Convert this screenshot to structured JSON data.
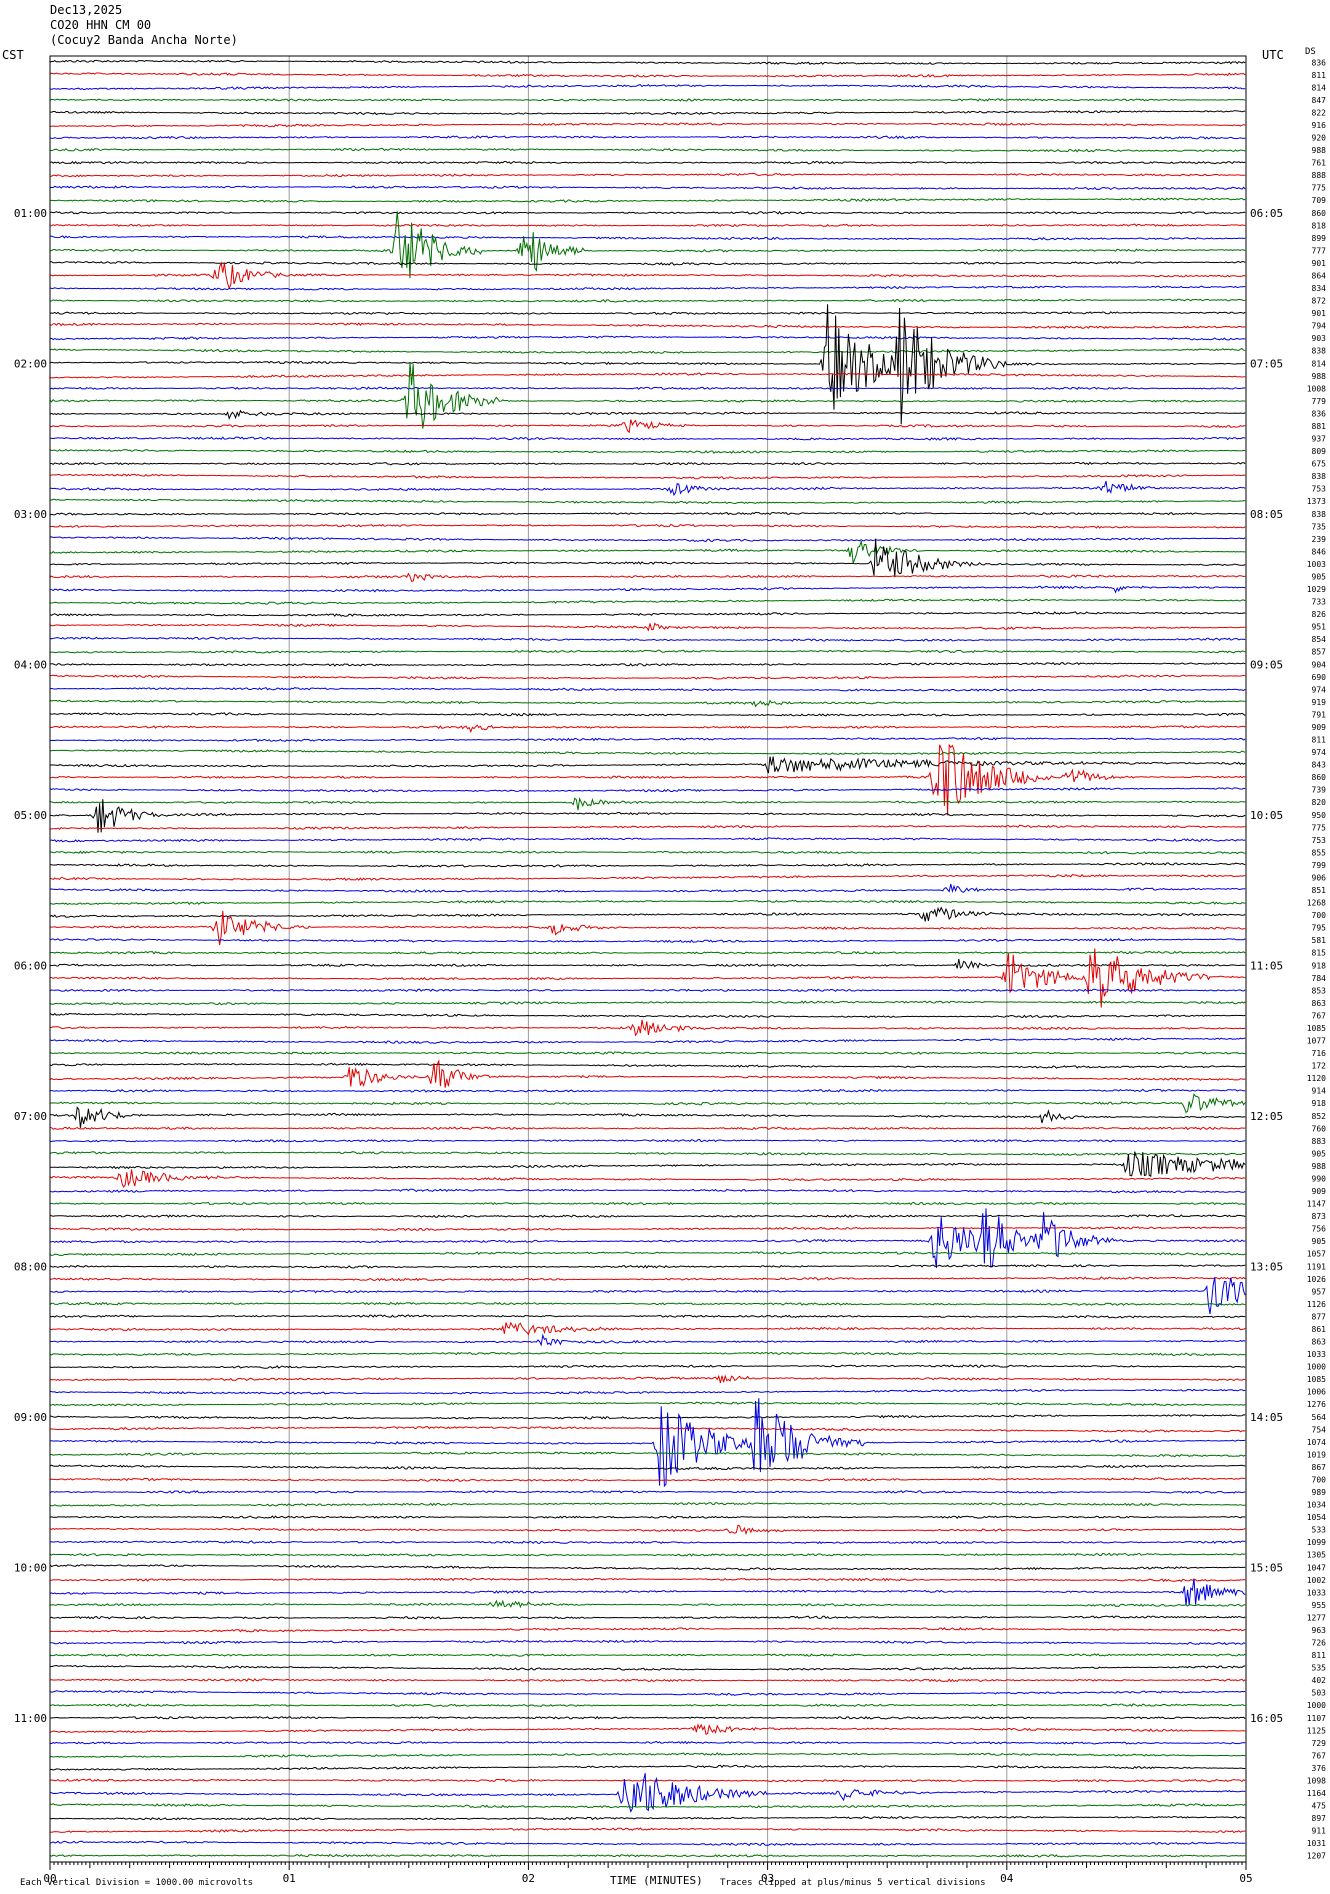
{
  "header": {
    "date": "Dec13,2025",
    "station": "CO20 HHN CM 00",
    "location": "(Cocuy2 Banda Ancha Norte)"
  },
  "left_axis_label": "CST",
  "right_axis_label": "UTC",
  "ds_label": "DS",
  "footer": {
    "scale_note": "Each Vertical Division = 1000.00 microvolts",
    "xlabel": "TIME (MINUTES)",
    "clip_note": "Traces clipped at plus/minus 5 vertical divisions"
  },
  "chart_data": {
    "type": "line",
    "trace_count": 144,
    "minutes_per_trace": 5,
    "xlim": [
      0,
      5
    ],
    "x_ticks": [
      "00",
      "01",
      "02",
      "03",
      "04",
      "05"
    ],
    "trace_colors": [
      "#000000",
      "#e00000",
      "#0000e0",
      "#007000"
    ],
    "left_time_labels": [
      "01:00",
      "02:00",
      "03:00",
      "04:00",
      "05:00",
      "06:00",
      "07:00",
      "08:00",
      "09:00",
      "10:00",
      "11:00"
    ],
    "right_time_labels": [
      "06:05",
      "07:05",
      "08:05",
      "09:05",
      "10:05",
      "11:05",
      "12:05",
      "13:05",
      "14:05",
      "15:05",
      "16:05"
    ],
    "ds_values": [
      836,
      811,
      814,
      847,
      822,
      916,
      920,
      988,
      761,
      888,
      775,
      709,
      860,
      818,
      899,
      777,
      901,
      864,
      834,
      872,
      901,
      794,
      903,
      838,
      814,
      988,
      1008,
      779,
      836,
      881,
      937,
      809,
      675,
      838,
      753,
      1373,
      838,
      735,
      239,
      846,
      1003,
      905,
      1029,
      733,
      826,
      951,
      854,
      857,
      904,
      690,
      974,
      919,
      791,
      909,
      811,
      974,
      843,
      860,
      739,
      820,
      950,
      775,
      753,
      855,
      799,
      906,
      851,
      1268,
      700,
      795,
      581,
      815,
      918,
      784,
      853,
      863,
      767,
      1085,
      1077,
      716,
      172,
      1120,
      914,
      918,
      852,
      760,
      883,
      905,
      988,
      990,
      909,
      1147,
      873,
      756,
      905,
      1057,
      1191,
      1026,
      957,
      1126,
      877,
      861,
      863,
      1033,
      1000,
      1085,
      1006,
      1276,
      564,
      754,
      1074,
      1019,
      867,
      700,
      989,
      1034,
      1054,
      533,
      1099,
      1305,
      1047,
      1002,
      1033,
      955,
      1277,
      963,
      726,
      811,
      535,
      402,
      503,
      1000,
      1107,
      1125,
      729,
      767,
      376,
      1098,
      1164,
      475,
      897,
      911,
      1031,
      1207
    ],
    "events": [
      {
        "trace": 15,
        "minute": 1.45,
        "amplitude": 4.2,
        "duration": 0.35
      },
      {
        "trace": 15,
        "minute": 1.98,
        "amplitude": 3.0,
        "duration": 0.25
      },
      {
        "trace": 17,
        "minute": 0.7,
        "amplitude": 1.6,
        "duration": 0.3
      },
      {
        "trace": 24,
        "minute": 3.25,
        "amplitude": 5.0,
        "duration": 0.45
      },
      {
        "trace": 24,
        "minute": 3.55,
        "amplitude": 5.0,
        "duration": 0.45
      },
      {
        "trace": 27,
        "minute": 1.5,
        "amplitude": 3.5,
        "duration": 0.4
      },
      {
        "trace": 28,
        "minute": 0.75,
        "amplitude": 0.5,
        "duration": 0.3
      },
      {
        "trace": 29,
        "minute": 2.4,
        "amplitude": 0.6,
        "duration": 0.3
      },
      {
        "trace": 34,
        "minute": 2.6,
        "amplitude": 0.6,
        "duration": 0.3
      },
      {
        "trace": 34,
        "minute": 4.4,
        "amplitude": 0.8,
        "duration": 0.25
      },
      {
        "trace": 39,
        "minute": 3.35,
        "amplitude": 1.2,
        "duration": 0.3
      },
      {
        "trace": 40,
        "minute": 3.45,
        "amplitude": 2.2,
        "duration": 0.45
      },
      {
        "trace": 41,
        "minute": 1.5,
        "amplitude": 0.4,
        "duration": 0.3
      },
      {
        "trace": 42,
        "minute": 4.45,
        "amplitude": 0.4,
        "duration": 0.2
      },
      {
        "trace": 45,
        "minute": 2.5,
        "amplitude": 0.4,
        "duration": 0.2
      },
      {
        "trace": 51,
        "minute": 2.95,
        "amplitude": 0.4,
        "duration": 0.2
      },
      {
        "trace": 53,
        "minute": 1.75,
        "amplitude": 0.4,
        "duration": 0.2
      },
      {
        "trace": 56,
        "minute": 3.0,
        "amplitude": 0.8,
        "duration": 1.6
      },
      {
        "trace": 57,
        "minute": 3.7,
        "amplitude": 4.5,
        "duration": 0.5
      },
      {
        "trace": 57,
        "minute": 4.25,
        "amplitude": 0.9,
        "duration": 0.3
      },
      {
        "trace": 59,
        "minute": 2.2,
        "amplitude": 0.7,
        "duration": 0.2
      },
      {
        "trace": 60,
        "minute": 0.2,
        "amplitude": 1.8,
        "duration": 0.3
      },
      {
        "trace": 66,
        "minute": 3.75,
        "amplitude": 0.6,
        "duration": 0.2
      },
      {
        "trace": 68,
        "minute": 3.65,
        "amplitude": 0.9,
        "duration": 0.4
      },
      {
        "trace": 69,
        "minute": 0.7,
        "amplitude": 1.6,
        "duration": 0.4
      },
      {
        "trace": 69,
        "minute": 2.1,
        "amplitude": 0.6,
        "duration": 0.3
      },
      {
        "trace": 72,
        "minute": 3.8,
        "amplitude": 0.6,
        "duration": 0.2
      },
      {
        "trace": 73,
        "minute": 4.0,
        "amplitude": 2.2,
        "duration": 0.4
      },
      {
        "trace": 73,
        "minute": 4.35,
        "amplitude": 3.6,
        "duration": 0.5
      },
      {
        "trace": 77,
        "minute": 2.45,
        "amplitude": 1.2,
        "duration": 0.3
      },
      {
        "trace": 81,
        "minute": 1.25,
        "amplitude": 1.3,
        "duration": 0.3
      },
      {
        "trace": 81,
        "minute": 1.6,
        "amplitude": 1.8,
        "duration": 0.25
      },
      {
        "trace": 83,
        "minute": 4.75,
        "amplitude": 1.0,
        "duration": 0.4
      },
      {
        "trace": 84,
        "minute": 0.12,
        "amplitude": 1.2,
        "duration": 0.3
      },
      {
        "trace": 84,
        "minute": 4.15,
        "amplitude": 0.6,
        "duration": 0.2
      },
      {
        "trace": 88,
        "minute": 4.5,
        "amplitude": 1.2,
        "duration": 1.2
      },
      {
        "trace": 89,
        "minute": 0.3,
        "amplitude": 0.9,
        "duration": 0.5
      },
      {
        "trace": 94,
        "minute": 3.7,
        "amplitude": 3.0,
        "duration": 0.35
      },
      {
        "trace": 94,
        "minute": 3.9,
        "amplitude": 3.2,
        "duration": 0.35
      },
      {
        "trace": 94,
        "minute": 4.15,
        "amplitude": 2.6,
        "duration": 0.3
      },
      {
        "trace": 98,
        "minute": 4.85,
        "amplitude": 2.4,
        "duration": 0.35
      },
      {
        "trace": 101,
        "minute": 1.9,
        "amplitude": 0.6,
        "duration": 0.7
      },
      {
        "trace": 102,
        "minute": 2.05,
        "amplitude": 0.6,
        "duration": 0.2
      },
      {
        "trace": 105,
        "minute": 2.8,
        "amplitude": 0.6,
        "duration": 0.2
      },
      {
        "trace": 110,
        "minute": 2.55,
        "amplitude": 4.0,
        "duration": 0.45
      },
      {
        "trace": 110,
        "minute": 2.95,
        "amplitude": 4.5,
        "duration": 0.45
      },
      {
        "trace": 117,
        "minute": 2.85,
        "amplitude": 0.5,
        "duration": 0.3
      },
      {
        "trace": 122,
        "minute": 4.75,
        "amplitude": 1.4,
        "duration": 0.35
      },
      {
        "trace": 123,
        "minute": 1.85,
        "amplitude": 0.5,
        "duration": 0.3
      },
      {
        "trace": 138,
        "minute": 2.4,
        "amplitude": 2.8,
        "duration": 0.6
      },
      {
        "trace": 138,
        "minute": 3.3,
        "amplitude": 0.7,
        "duration": 0.4
      },
      {
        "trace": 133,
        "minute": 2.7,
        "amplitude": 0.5,
        "duration": 0.5
      }
    ]
  }
}
